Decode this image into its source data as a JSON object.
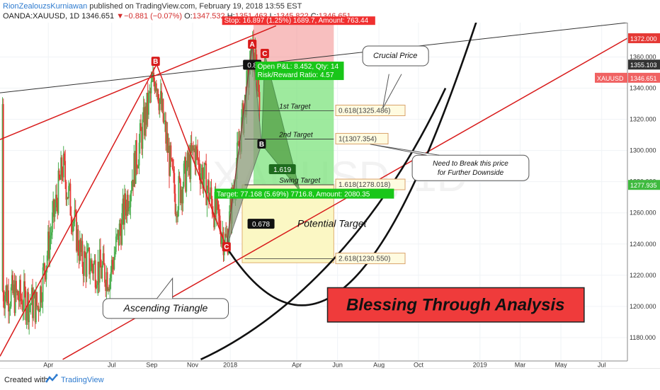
{
  "header": {
    "author": "RionZealouzsKurniawan",
    "published": "published on TradingView.com, February 19, 2018 13:55 EST",
    "symbol": "OANDA:XAUUSD, 1D",
    "last": "1346.651",
    "change_arrow": "▼",
    "change": "−0.881 (−0.07%)",
    "o_label": "O:",
    "o_value": "1347.532",
    "h_label": "H:",
    "h_value": "1351.463",
    "l_label": "L:",
    "l_value": "1345.822",
    "c_label": "C:",
    "c_value": "1346.651"
  },
  "footer": {
    "created_with": "Created with",
    "brand": "TradingView"
  },
  "colors": {
    "up": "#4caf50",
    "down": "#e53935",
    "pattern": "#d81b1b",
    "profit": "#7de37d",
    "stop": "#f28b8b",
    "banner": "#ef3b3b"
  },
  "chart_data": {
    "type": "candlestick",
    "symbol": "XAUUSD",
    "timeframe": "1D",
    "ylim": [
      1165,
      1382
    ],
    "y_ticks": [
      "1360.000",
      "1340.000",
      "1320.000",
      "1300.000",
      "1280.000",
      "1260.000",
      "1240.000",
      "1220.000",
      "1200.000",
      "1180.000"
    ],
    "x_ticks": [
      {
        "label": "Apr",
        "pos": 0.077
      },
      {
        "label": "Jul",
        "pos": 0.178
      },
      {
        "label": "Sep",
        "pos": 0.242
      },
      {
        "label": "Nov",
        "pos": 0.307
      },
      {
        "label": "2018",
        "pos": 0.367
      },
      {
        "label": "Apr",
        "pos": 0.473
      },
      {
        "label": "Jun",
        "pos": 0.538
      },
      {
        "label": "Aug",
        "pos": 0.604
      },
      {
        "label": "Oct",
        "pos": 0.667
      },
      {
        "label": "2019",
        "pos": 0.765
      },
      {
        "label": "Mar",
        "pos": 0.829
      },
      {
        "label": "May",
        "pos": 0.894
      },
      {
        "label": "Jul",
        "pos": 0.959
      }
    ],
    "price_labels": [
      {
        "text": "1372.000",
        "price": 1372,
        "color": "#e53935"
      },
      {
        "text": "1355.103",
        "price": 1355.103,
        "color": "#333333"
      },
      {
        "text": "1346.651",
        "price": 1346.651,
        "color": "#f06262",
        "prefix": "XAUUSD"
      },
      {
        "text": "1277.935",
        "price": 1277.935,
        "color": "#3fba3f"
      }
    ],
    "pattern_points": [
      {
        "label": "B",
        "date_pos": 0.248,
        "price": 1357
      },
      {
        "label": "C",
        "date_pos": 0.361,
        "price": 1238
      },
      {
        "label": "A",
        "date_pos": 0.402,
        "price": 1368
      },
      {
        "label": "C",
        "date_pos": 0.422,
        "price": 1362
      },
      {
        "label": "B",
        "date_pos": 0.417,
        "price": 1304
      }
    ],
    "ratios": [
      "0.8",
      "1.619",
      "0.678"
    ],
    "levels": [
      {
        "label": "1st Target",
        "value": "0.618(1325.486)",
        "price": 1325.486
      },
      {
        "label": "2nd Target",
        "value": "1(1307.354)",
        "price": 1307.354
      },
      {
        "label": "Swing Target",
        "value": "1.618(1278.018)",
        "price": 1278.018
      },
      {
        "label": "",
        "value": "2.618(1230.550)",
        "price": 1230.55
      }
    ],
    "position": {
      "stop_text": "Stop: 16.897 (1.25%) 1689.7, Amount: 763.44",
      "open_pl": "Open P&L: 8.452, Qty: 14",
      "risk_reward": "Risk/Reward Ratio: 4.57",
      "target_text": "Target: 77.168 (5.69%) 7716.8, Amount: 2080.35"
    },
    "annotations": {
      "crucial_price": "Crucial Price",
      "need_break_1": "Need to Break this price",
      "need_break_2": "for Further Downside",
      "potential_target": "Potential Target",
      "ascending_triangle": "Ascending Triangle",
      "banner": "Blessing Through Analysis"
    },
    "watermark": "XAUUSD, 1D"
  }
}
